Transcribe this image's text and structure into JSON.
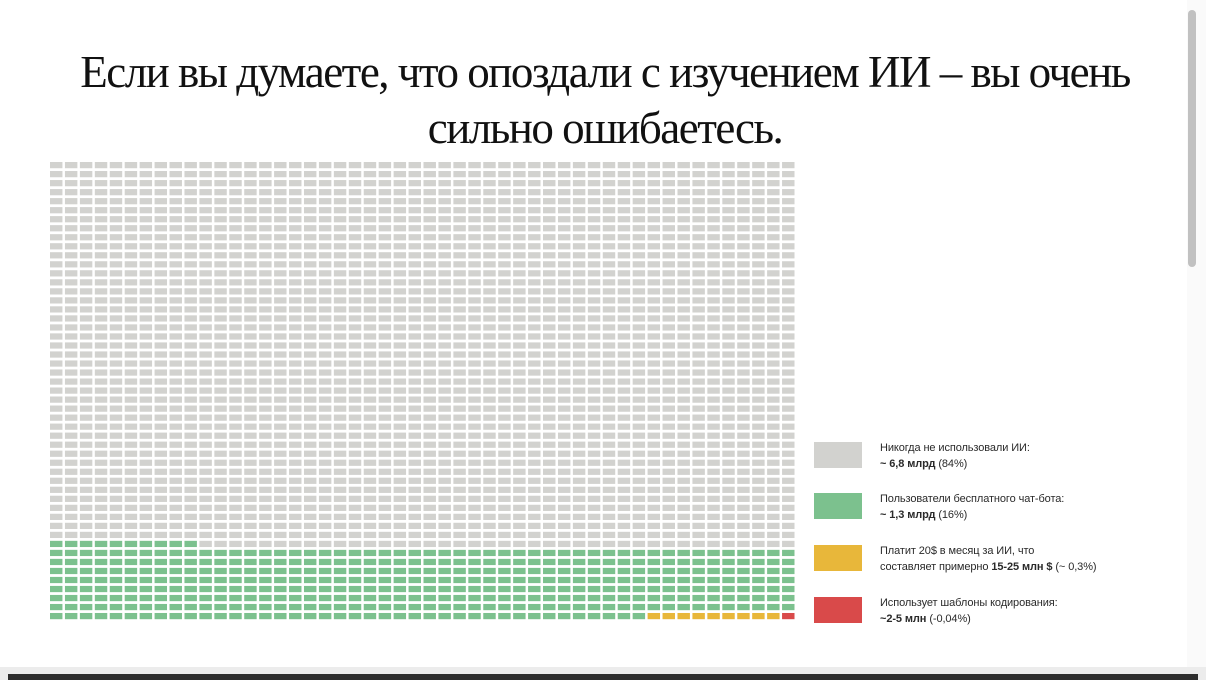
{
  "title": "Если вы думаете, что опоздали с изучением ИИ – вы очень сильно ошибаетесь.",
  "colors": {
    "never": "#d2d2cf",
    "free": "#7cc18e",
    "paid": "#e8b73a",
    "coding": "#d94a4a"
  },
  "legend": [
    {
      "line1": "Никогда не использовали ИИ:",
      "bold": "~ 6,8 млрд",
      "suffix": " (84%)"
    },
    {
      "line1": "Пользователи бесплатного чат-бота:",
      "bold": "~ 1,3 млрд",
      "suffix": " (16%)"
    },
    {
      "line1": "Платит 20$ в месяц за ИИ, что",
      "line2": "составляет примерно ",
      "bold": "15-25 млн $",
      "suffix": " (~ 0,3%)"
    },
    {
      "line1": "Использует шаблоны кодирования:",
      "bold": "~2-5 млн",
      "suffix": " (-0,04%)"
    }
  ],
  "chart_data": {
    "type": "waffle",
    "title": "Если вы думаете, что опоздали с изучением ИИ – вы очень сильно ошибаетесь.",
    "grid": {
      "columns": 50,
      "rows": 51,
      "fill_order": "bottom-left to right, then upward"
    },
    "categories": [
      "Никогда не использовали ИИ",
      "Пользователи бесплатного чат-бота",
      "Платит 20$ в месяц за ИИ",
      "Использует шаблоны кодирования"
    ],
    "cells": [
      2140,
      400,
      9,
      1
    ],
    "displayed_values": [
      "~ 6,8 млрд",
      "~ 1,3 млрд",
      "15-25 млн",
      "~2-5 млн"
    ],
    "percentages": [
      84,
      16,
      0.3,
      0.04
    ],
    "legend_position": "right-bottom"
  }
}
